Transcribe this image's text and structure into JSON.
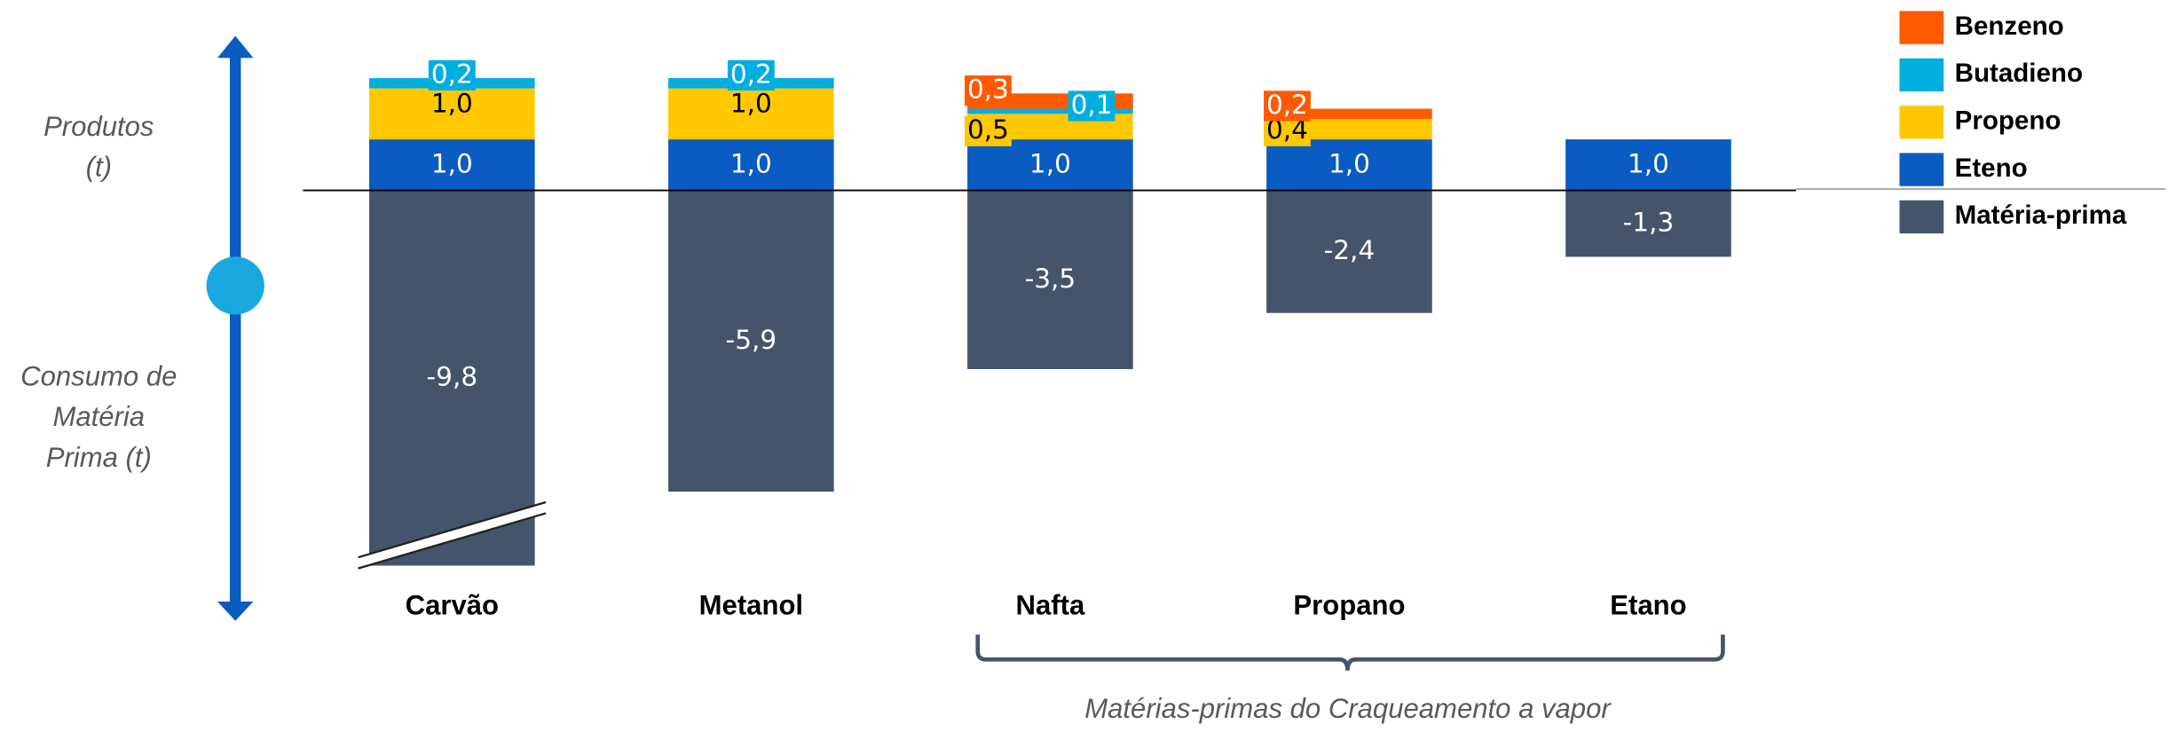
{
  "chart_data": {
    "type": "bar",
    "stacked": true,
    "categories": [
      "Carvão",
      "Metanol",
      "Nafta",
      "Propano",
      "Etano"
    ],
    "series": [
      {
        "name": "Matéria-prima",
        "color": "#44546a",
        "values": [
          -9.8,
          -5.9,
          -3.5,
          -2.4,
          -1.3
        ],
        "value_labels": [
          "-9,8",
          "-5,9",
          "-3,5",
          "-2,4",
          "-1,3"
        ]
      },
      {
        "name": "Eteno",
        "color": "#0a5bc2",
        "values": [
          1.0,
          1.0,
          1.0,
          1.0,
          1.0
        ],
        "value_labels": [
          "1,0",
          "1,0",
          "1,0",
          "1,0",
          "1,0"
        ]
      },
      {
        "name": "Propeno",
        "color": "#ffc800",
        "values": [
          1.0,
          1.0,
          0.5,
          0.4,
          null
        ],
        "value_labels": [
          "1,0",
          "1,0",
          "0,5",
          "0,4",
          null
        ]
      },
      {
        "name": "Butadieno",
        "color": "#00aee0",
        "values": [
          0.2,
          0.2,
          0.1,
          null,
          null
        ],
        "value_labels": [
          "0,2",
          "0,2",
          "0,1",
          null,
          null
        ]
      },
      {
        "name": "Benzeno",
        "color": "#ff5a00",
        "values": [
          null,
          null,
          0.3,
          0.2,
          null
        ],
        "value_labels": [
          null,
          null,
          "0,3",
          "0,2",
          null
        ]
      }
    ],
    "ylim": [
      -7.35,
      3.73
    ],
    "axis_break": true,
    "legend": "top-right",
    "annotations": [
      [
        "Produtos",
        "(t)"
      ],
      [
        "Consumo de",
        "Matéria",
        "Prima (t)"
      ]
    ],
    "bracket_label": "Matérias-primas do Craqueamento a vapor"
  }
}
